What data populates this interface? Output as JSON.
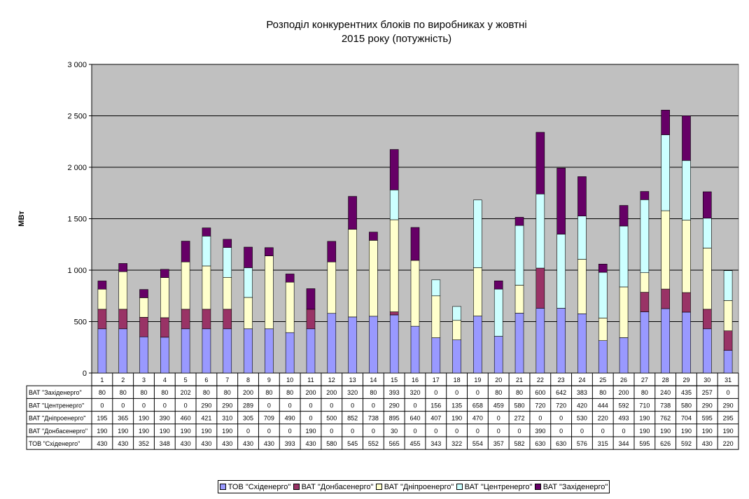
{
  "chart_data": {
    "type": "bar",
    "stacked": true,
    "title": [
      "Розподіл конкурентних блоків по виробниках у жовтні",
      "2015 року (потужність)"
    ],
    "ylabel": "МВт",
    "ylim": [
      0,
      3000
    ],
    "yticks": [
      0,
      500,
      1000,
      1500,
      2000,
      2500,
      3000
    ],
    "ytick_labels": [
      "0",
      "500",
      "1 000",
      "1 500",
      "2 000",
      "2 500",
      "3 000"
    ],
    "grid": true,
    "legend_position": "bottom",
    "categories": [
      "1",
      "2",
      "3",
      "4",
      "5",
      "6",
      "7",
      "8",
      "9",
      "10",
      "11",
      "12",
      "13",
      "14",
      "15",
      "16",
      "17",
      "18",
      "19",
      "20",
      "21",
      "22",
      "23",
      "24",
      "25",
      "26",
      "27",
      "28",
      "29",
      "30",
      "31"
    ],
    "series": [
      {
        "name": "ТОВ \"Східенерго\"",
        "color": "#9999ff",
        "values": [
          430,
          430,
          352,
          348,
          430,
          430,
          430,
          430,
          430,
          393,
          430,
          580,
          545,
          552,
          565,
          455,
          343,
          322,
          554,
          357,
          582,
          630,
          630,
          576,
          315,
          344,
          595,
          626,
          592,
          430,
          220
        ]
      },
      {
        "name": "ВАТ \"Донбасенерго\"",
        "color": "#993366",
        "values": [
          190,
          190,
          190,
          190,
          190,
          190,
          190,
          0,
          0,
          0,
          190,
          0,
          0,
          0,
          30,
          0,
          0,
          0,
          0,
          0,
          0,
          390,
          0,
          0,
          0,
          0,
          190,
          190,
          190,
          190,
          190
        ]
      },
      {
        "name": "ВАТ \"Дніпроенерго\"",
        "color": "#ffffcc",
        "values": [
          195,
          365,
          190,
          390,
          460,
          421,
          310,
          305,
          709,
          490,
          0,
          500,
          852,
          738,
          895,
          640,
          407,
          190,
          470,
          0,
          272,
          0,
          0,
          530,
          220,
          493,
          190,
          762,
          704,
          595,
          295
        ]
      },
      {
        "name": "ВАТ \"Центренерго\"",
        "color": "#ccffff",
        "values": [
          0,
          0,
          0,
          0,
          0,
          290,
          290,
          289,
          0,
          0,
          0,
          0,
          0,
          0,
          290,
          0,
          156,
          135,
          658,
          459,
          580,
          720,
          720,
          420,
          444,
          592,
          710,
          738,
          580,
          290,
          290
        ]
      },
      {
        "name": "ВАТ \"Західенерго\"",
        "color": "#660066",
        "values": [
          80,
          80,
          80,
          80,
          202,
          80,
          80,
          200,
          80,
          80,
          200,
          200,
          320,
          80,
          393,
          320,
          0,
          0,
          0,
          80,
          80,
          600,
          642,
          383,
          80,
          200,
          80,
          240,
          435,
          257,
          0
        ]
      }
    ],
    "table_row_order": [
      4,
      3,
      2,
      1,
      0
    ]
  }
}
